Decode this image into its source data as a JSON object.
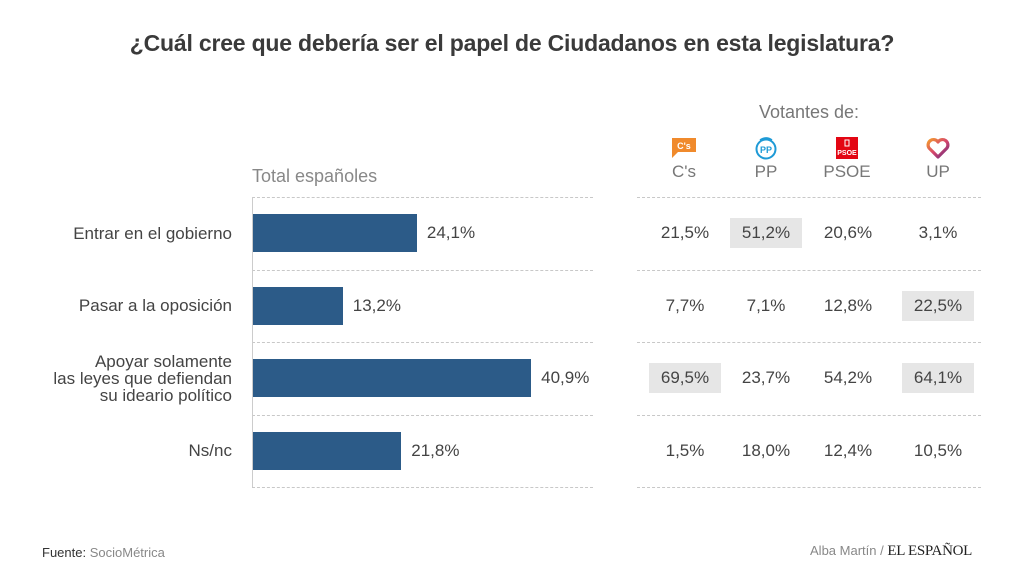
{
  "chart_data": {
    "type": "bar",
    "title": "¿Cuál cree que debería ser el papel de Ciudadanos en esta legislatura?",
    "orientation": "horizontal",
    "series_label": "Total españoles",
    "categories": [
      "Entrar en el gobierno",
      "Pasar a la oposición",
      "Apoyar solamente las leyes que defiendan su ideario político",
      "Ns/nc"
    ],
    "category_lines": [
      [
        "Entrar en el gobierno"
      ],
      [
        "Pasar a la oposición"
      ],
      [
        "Apoyar solamente",
        "las leyes que defiendan",
        "su ideario político"
      ],
      [
        "Ns/nc"
      ]
    ],
    "values": [
      24.1,
      13.2,
      40.9,
      21.8
    ],
    "value_labels": [
      "24,1%",
      "13,2%",
      "40,9%",
      "21,8%"
    ],
    "xlim": [
      0,
      50
    ],
    "bar_color": "#2c5b88",
    "table": {
      "group_label": "Votantes de:",
      "columns": [
        {
          "name": "C's",
          "icon": "ciudadanos-logo-icon"
        },
        {
          "name": "PP",
          "icon": "pp-logo-icon"
        },
        {
          "name": "PSOE",
          "icon": "psoe-logo-icon"
        },
        {
          "name": "UP",
          "icon": "unidos-podemos-heart-icon"
        }
      ],
      "rows": [
        {
          "values": [
            "21,5%",
            "51,2%",
            "20,6%",
            "3,1%"
          ],
          "highlight": [
            false,
            true,
            false,
            false
          ]
        },
        {
          "values": [
            "7,7%",
            "7,1%",
            "12,8%",
            "22,5%"
          ],
          "highlight": [
            false,
            false,
            false,
            true
          ]
        },
        {
          "values": [
            "69,5%",
            "23,7%",
            "54,2%",
            "64,1%"
          ],
          "highlight": [
            true,
            false,
            false,
            true
          ]
        },
        {
          "values": [
            "1,5%",
            "18,0%",
            "12,4%",
            "10,5%"
          ],
          "highlight": [
            false,
            false,
            false,
            false
          ]
        }
      ]
    }
  },
  "footer": {
    "source_label": "Fuente:",
    "source_value": "SocioMétrica",
    "author": "Alba Martín /",
    "brand": "EL ESPAÑOL"
  }
}
